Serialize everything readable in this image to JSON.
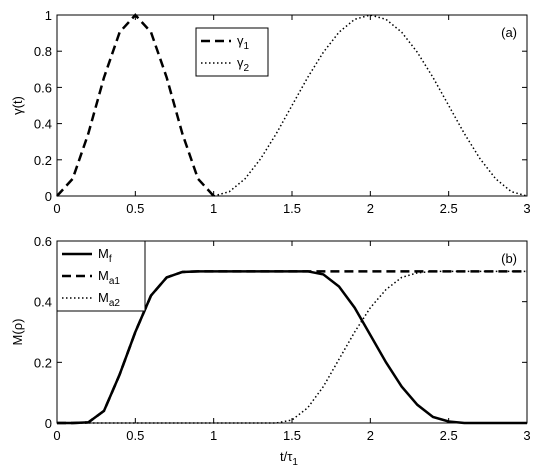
{
  "chart_data": [
    {
      "type": "line",
      "annotation": "(a)",
      "y_label": "γ(t)",
      "legend": "top",
      "x": [
        0,
        0.1,
        0.2,
        0.3,
        0.4,
        0.5,
        0.6,
        0.7,
        0.8,
        0.9,
        1,
        1.1,
        1.2,
        1.3,
        1.4,
        1.5,
        1.6,
        1.7,
        1.8,
        1.9,
        2,
        2.1,
        2.2,
        2.3,
        2.4,
        2.5,
        2.6,
        2.7,
        2.8,
        2.9,
        3
      ],
      "series": [
        {
          "name": "γ1",
          "color": "#000000",
          "dash": "dashed",
          "values": [
            0,
            0.095,
            0.345,
            0.655,
            0.905,
            1,
            0.905,
            0.655,
            0.345,
            0.095,
            0,
            null,
            null,
            null,
            null,
            null,
            null,
            null,
            null,
            null,
            null,
            null,
            null,
            null,
            null,
            null,
            null,
            null,
            null,
            null,
            null
          ]
        },
        {
          "name": "γ2",
          "color": "#000000",
          "dash": "dotted",
          "values": [
            null,
            null,
            null,
            null,
            null,
            null,
            null,
            null,
            null,
            null,
            0,
            0.024,
            0.095,
            0.206,
            0.345,
            0.5,
            0.655,
            0.794,
            0.905,
            0.976,
            1,
            0.976,
            0.905,
            0.794,
            0.655,
            0.5,
            0.345,
            0.206,
            0.095,
            0.024,
            0
          ]
        }
      ],
      "xlim": [
        0,
        3
      ],
      "xticks": [
        0,
        0.5,
        1,
        1.5,
        2,
        2.5,
        3
      ],
      "ylim": [
        0,
        1
      ],
      "yticks": [
        0,
        0.2,
        0.4,
        0.6,
        0.8,
        1
      ]
    },
    {
      "type": "line",
      "annotation": "(b)",
      "y_label": "M(ρ)",
      "x_label": "t/τ1",
      "legend": "top-left",
      "x": [
        0,
        0.1,
        0.2,
        0.3,
        0.4,
        0.5,
        0.6,
        0.7,
        0.8,
        0.9,
        1,
        1.1,
        1.2,
        1.3,
        1.4,
        1.5,
        1.6,
        1.7,
        1.8,
        1.9,
        2,
        2.1,
        2.2,
        2.3,
        2.4,
        2.5,
        2.6,
        2.7,
        2.8,
        2.9,
        3
      ],
      "series": [
        {
          "name": "Mf",
          "color": "#000000",
          "dash": "solid",
          "values": [
            0,
            0,
            0.002,
            0.04,
            0.16,
            0.3,
            0.42,
            0.48,
            0.498,
            0.5,
            0.5,
            0.5,
            0.5,
            0.5,
            0.5,
            0.5,
            0.5,
            0.49,
            0.45,
            0.38,
            0.29,
            0.2,
            0.12,
            0.06,
            0.02,
            0.005,
            0,
            0,
            0,
            0,
            0
          ]
        },
        {
          "name": "Ma1",
          "color": "#000000",
          "dash": "dashed",
          "values": [
            0,
            0,
            0.002,
            0.04,
            0.16,
            0.3,
            0.42,
            0.48,
            0.498,
            0.5,
            0.5,
            0.5,
            0.5,
            0.5,
            0.5,
            0.5,
            0.5,
            0.5,
            0.5,
            0.5,
            0.5,
            0.5,
            0.5,
            0.5,
            0.5,
            0.5,
            0.5,
            0.5,
            0.5,
            0.5,
            0.5
          ]
        },
        {
          "name": "Ma2",
          "color": "#000000",
          "dash": "dotted",
          "values": [
            0,
            0,
            0,
            0,
            0,
            0,
            0,
            0,
            0,
            0,
            0,
            0,
            0,
            0,
            0,
            0.01,
            0.05,
            0.12,
            0.21,
            0.3,
            0.38,
            0.44,
            0.48,
            0.495,
            0.5,
            0.5,
            0.5,
            0.5,
            0.5,
            0.5,
            0.5
          ]
        }
      ],
      "xlim": [
        0,
        3
      ],
      "xticks": [
        0,
        0.5,
        1,
        1.5,
        2,
        2.5,
        3
      ],
      "ylim": [
        0,
        0.6
      ],
      "yticks": [
        0,
        0.2,
        0.4,
        0.6
      ]
    }
  ]
}
